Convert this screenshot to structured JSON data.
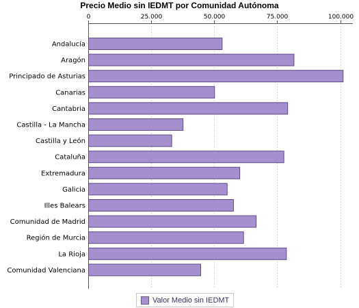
{
  "chart_data": {
    "type": "bar",
    "orientation": "horizontal",
    "title": "Precio Medio sin IEDMT por Comunidad Autónoma",
    "categories": [
      "Andalucía",
      "Aragón",
      "Principado de Asturias",
      "Canarias",
      "Cantabria",
      "Castilla - La Mancha",
      "Castilla y León",
      "Cataluña",
      "Extremadura",
      "Galicia",
      "Illes Balears",
      "Comunidad de Madrid",
      "Región de Murcia",
      "La Rioja",
      "Comunidad Valenciana"
    ],
    "series": [
      {
        "name": "Valor Medio sin IEDMT",
        "values": [
          53000,
          81500,
          101000,
          50000,
          79000,
          37500,
          33000,
          77500,
          60000,
          55000,
          57500,
          66500,
          61500,
          78500,
          44500
        ]
      }
    ],
    "value_axis": {
      "position": "top",
      "range": [
        0,
        105000
      ],
      "ticks": [
        0,
        25000,
        50000,
        75000,
        100000
      ],
      "tick_labels": [
        "0",
        "25.000",
        "50.000",
        "75.000",
        "100.000"
      ],
      "grid": "dashed vertical"
    },
    "legend": {
      "placement": "bottom",
      "label": "Valor Medio sin IEDMT"
    },
    "colors": {
      "bar_fill": "#a58fce",
      "bar_stroke": "#5e4b86",
      "grid": "#d8d8d8",
      "legend_text": "#3b2d5a"
    }
  }
}
